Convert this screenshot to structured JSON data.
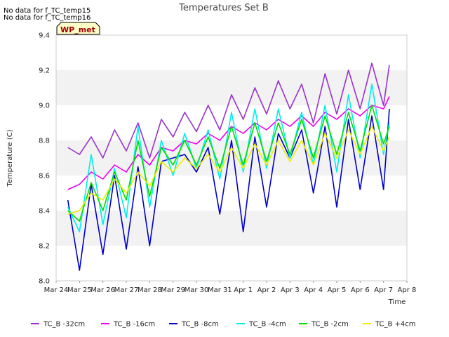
{
  "notes": [
    "No data for f_TC_temp15",
    "No data for f_TC_temp16"
  ],
  "badge": "WP_met",
  "chart_data": {
    "type": "line",
    "title": "Temperatures Set B",
    "xlabel": "Time",
    "ylabel": "Temperature (C)",
    "ylim": [
      8.0,
      9.4
    ],
    "yticks": [
      "8.0",
      "8.2",
      "8.4",
      "8.6",
      "8.8",
      "9.0",
      "9.2",
      "9.4"
    ],
    "xlim": [
      "2024-03-24",
      "2024-04-08"
    ],
    "xticks": [
      "Mar 24",
      "Mar 25",
      "Mar 26",
      "Mar 27",
      "Mar 28",
      "Mar 29",
      "Mar 30",
      "Mar 31",
      "Apr 1",
      "Apr 2",
      "Apr 3",
      "Apr 4",
      "Apr 5",
      "Apr 6",
      "Apr 7",
      "Apr 8"
    ],
    "grid": "horizontal bands",
    "legend": "bottom",
    "colors": {
      "TC_B -32cm": "#9933cc",
      "TC_B -16cm": "#ee00ee",
      "TC_B -8cm": "#0000cc",
      "TC_B -4cm": "#00eeee",
      "TC_B -2cm": "#00dd00",
      "TC_B +4cm": "#eeee00"
    },
    "series": [
      {
        "name": "TC_B -32cm",
        "x": [
          "Mar 24 12:00",
          "Mar 25 00:00",
          "Mar 25 12:00",
          "Mar 26 00:00",
          "Mar 26 12:00",
          "Mar 27 00:00",
          "Mar 27 12:00",
          "Mar 28 00:00",
          "Mar 28 12:00",
          "Mar 29 00:00",
          "Mar 29 12:00",
          "Mar 30 00:00",
          "Mar 30 12:00",
          "Mar 31 00:00",
          "Mar 31 12:00",
          "Apr 1 00:00",
          "Apr 1 12:00",
          "Apr 2 00:00",
          "Apr 2 12:00",
          "Apr 3 00:00",
          "Apr 3 12:00",
          "Apr 4 00:00",
          "Apr 4 12:00",
          "Apr 5 00:00",
          "Apr 5 12:00",
          "Apr 6 00:00",
          "Apr 6 12:00",
          "Apr 7 00:00",
          "Apr 7 06:00"
        ],
        "values": [
          8.76,
          8.72,
          8.82,
          8.7,
          8.86,
          8.74,
          8.9,
          8.7,
          8.92,
          8.82,
          8.96,
          8.85,
          9.0,
          8.86,
          9.06,
          8.92,
          9.1,
          8.95,
          9.14,
          8.98,
          9.12,
          8.9,
          9.18,
          8.95,
          9.2,
          8.98,
          9.24,
          9.0,
          9.23
        ]
      },
      {
        "name": "TC_B -16cm",
        "x": [
          "Mar 24 12:00",
          "Mar 25 00:00",
          "Mar 25 12:00",
          "Mar 26 00:00",
          "Mar 26 12:00",
          "Mar 27 00:00",
          "Mar 27 12:00",
          "Mar 28 00:00",
          "Mar 28 12:00",
          "Mar 29 00:00",
          "Mar 29 12:00",
          "Mar 30 00:00",
          "Mar 30 12:00",
          "Mar 31 00:00",
          "Mar 31 12:00",
          "Apr 1 00:00",
          "Apr 1 12:00",
          "Apr 2 00:00",
          "Apr 2 12:00",
          "Apr 3 00:00",
          "Apr 3 12:00",
          "Apr 4 00:00",
          "Apr 4 12:00",
          "Apr 5 00:00",
          "Apr 5 12:00",
          "Apr 6 00:00",
          "Apr 6 12:00",
          "Apr 7 00:00",
          "Apr 7 06:00"
        ],
        "values": [
          8.52,
          8.55,
          8.62,
          8.58,
          8.66,
          8.62,
          8.72,
          8.66,
          8.76,
          8.74,
          8.8,
          8.78,
          8.84,
          8.8,
          8.88,
          8.84,
          8.9,
          8.86,
          8.92,
          8.88,
          8.94,
          8.88,
          8.96,
          8.92,
          8.98,
          8.94,
          9.0,
          8.98,
          9.05
        ]
      },
      {
        "name": "TC_B -8cm",
        "x": [
          "Mar 24 12:00",
          "Mar 25 00:00",
          "Mar 25 12:00",
          "Mar 26 00:00",
          "Mar 26 12:00",
          "Mar 27 00:00",
          "Mar 27 12:00",
          "Mar 28 00:00",
          "Mar 28 12:00",
          "Mar 29 00:00",
          "Mar 29 12:00",
          "Mar 30 00:00",
          "Mar 30 12:00",
          "Mar 31 00:00",
          "Mar 31 12:00",
          "Apr 1 00:00",
          "Apr 1 12:00",
          "Apr 2 00:00",
          "Apr 2 12:00",
          "Apr 3 00:00",
          "Apr 3 12:00",
          "Apr 4 00:00",
          "Apr 4 12:00",
          "Apr 5 00:00",
          "Apr 5 12:00",
          "Apr 6 00:00",
          "Apr 6 12:00",
          "Apr 7 00:00",
          "Apr 7 06:00"
        ],
        "values": [
          8.46,
          8.06,
          8.55,
          8.15,
          8.6,
          8.18,
          8.65,
          8.2,
          8.68,
          8.7,
          8.72,
          8.62,
          8.76,
          8.38,
          8.8,
          8.28,
          8.82,
          8.42,
          8.84,
          8.7,
          8.86,
          8.5,
          8.88,
          8.42,
          8.92,
          8.52,
          8.94,
          8.52,
          8.98
        ]
      },
      {
        "name": "TC_B -4cm",
        "x": [
          "Mar 24 12:00",
          "Mar 25 00:00",
          "Mar 25 12:00",
          "Mar 26 00:00",
          "Mar 26 12:00",
          "Mar 27 00:00",
          "Mar 27 12:00",
          "Mar 28 00:00",
          "Mar 28 12:00",
          "Mar 29 00:00",
          "Mar 29 12:00",
          "Mar 30 00:00",
          "Mar 30 12:00",
          "Mar 31 00:00",
          "Mar 31 12:00",
          "Apr 1 00:00",
          "Apr 1 12:00",
          "Apr 2 00:00",
          "Apr 2 12:00",
          "Apr 3 00:00",
          "Apr 3 12:00",
          "Apr 4 00:00",
          "Apr 4 12:00",
          "Apr 5 00:00",
          "Apr 5 12:00",
          "Apr 6 00:00",
          "Apr 6 12:00",
          "Apr 7 00:00",
          "Apr 7 06:00"
        ],
        "values": [
          8.42,
          8.28,
          8.72,
          8.32,
          8.64,
          8.36,
          8.88,
          8.42,
          8.8,
          8.6,
          8.84,
          8.64,
          8.86,
          8.58,
          8.96,
          8.62,
          8.98,
          8.64,
          8.98,
          8.7,
          8.96,
          8.66,
          9.0,
          8.62,
          9.06,
          8.7,
          9.12,
          8.72,
          8.9
        ]
      },
      {
        "name": "TC_B -2cm",
        "x": [
          "Mar 24 12:00",
          "Mar 25 00:00",
          "Mar 25 12:00",
          "Mar 26 00:00",
          "Mar 26 12:00",
          "Mar 27 00:00",
          "Mar 27 12:00",
          "Mar 28 00:00",
          "Mar 28 12:00",
          "Mar 29 00:00",
          "Mar 29 12:00",
          "Mar 30 00:00",
          "Mar 30 12:00",
          "Mar 31 00:00",
          "Mar 31 12:00",
          "Apr 1 00:00",
          "Apr 1 12:00",
          "Apr 2 00:00",
          "Apr 2 12:00",
          "Apr 3 00:00",
          "Apr 3 12:00",
          "Apr 4 00:00",
          "Apr 4 12:00",
          "Apr 5 00:00",
          "Apr 5 12:00",
          "Apr 6 00:00",
          "Apr 6 12:00",
          "Apr 7 00:00",
          "Apr 7 06:00"
        ],
        "values": [
          8.4,
          8.34,
          8.56,
          8.4,
          8.62,
          8.46,
          8.8,
          8.48,
          8.76,
          8.66,
          8.8,
          8.66,
          8.82,
          8.64,
          8.88,
          8.66,
          8.9,
          8.68,
          8.9,
          8.72,
          8.92,
          8.7,
          8.94,
          8.72,
          8.96,
          8.74,
          9.0,
          8.78,
          8.88
        ]
      },
      {
        "name": "TC_B +4cm",
        "x": [
          "Mar 24 12:00",
          "Mar 25 00:00",
          "Mar 25 12:00",
          "Mar 26 00:00",
          "Mar 26 12:00",
          "Mar 27 00:00",
          "Mar 27 12:00",
          "Mar 28 00:00",
          "Mar 28 12:00",
          "Mar 29 00:00",
          "Mar 29 12:00",
          "Mar 30 00:00",
          "Mar 30 12:00",
          "Mar 31 00:00",
          "Mar 31 12:00",
          "Apr 1 00:00",
          "Apr 1 12:00",
          "Apr 2 00:00",
          "Apr 2 12:00",
          "Apr 3 00:00",
          "Apr 3 12:00",
          "Apr 4 00:00",
          "Apr 4 12:00",
          "Apr 5 00:00",
          "Apr 5 12:00",
          "Apr 6 00:00",
          "Apr 6 12:00",
          "Apr 7 00:00",
          "Apr 7 06:00"
        ],
        "values": [
          8.38,
          8.4,
          8.5,
          8.46,
          8.58,
          8.5,
          8.62,
          8.54,
          8.68,
          8.62,
          8.7,
          8.64,
          8.72,
          8.62,
          8.76,
          8.64,
          8.78,
          8.66,
          8.8,
          8.68,
          8.8,
          8.66,
          8.84,
          8.7,
          8.86,
          8.72,
          8.88,
          8.74,
          8.82
        ]
      }
    ]
  }
}
